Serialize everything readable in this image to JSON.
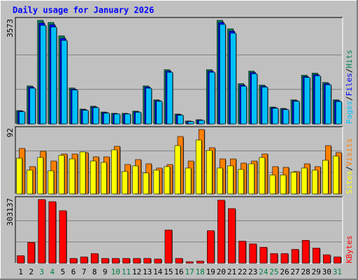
{
  "chart_data": [
    {
      "type": "bar",
      "title": "Daily usage for January 2026",
      "legend_separator": "/",
      "ylim": [
        0,
        3573
      ],
      "series": [
        {
          "name": "Hits",
          "color": "#00805c",
          "values": [
            460,
            1310,
            3573,
            3500,
            3040,
            1240,
            510,
            610,
            410,
            365,
            365,
            440,
            1310,
            830,
            1870,
            340,
            100,
            145,
            1870,
            3573,
            3280,
            1390,
            1820,
            1340,
            580,
            535,
            830,
            1680,
            1750,
            1430,
            830
          ]
        },
        {
          "name": "Files",
          "color": "#0000ff",
          "values": [
            440,
            1270,
            3480,
            3420,
            2950,
            1200,
            490,
            580,
            390,
            350,
            350,
            420,
            1270,
            800,
            1820,
            320,
            90,
            130,
            1820,
            3500,
            3200,
            1340,
            1770,
            1300,
            560,
            510,
            800,
            1630,
            1700,
            1390,
            800
          ]
        },
        {
          "name": "Pages",
          "color": "#00c0ff",
          "values": [
            420,
            1230,
            3400,
            3340,
            2880,
            1170,
            470,
            560,
            370,
            340,
            340,
            400,
            1230,
            780,
            1780,
            300,
            80,
            120,
            1780,
            3430,
            3130,
            1300,
            1730,
            1270,
            540,
            490,
            780,
            1600,
            1660,
            1350,
            770
          ]
        }
      ]
    },
    {
      "type": "bar",
      "ylim": [
        0,
        92
      ],
      "series": [
        {
          "name": "Visits",
          "color": "#ff8000",
          "values": [
            65,
            39,
            61,
            47,
            57,
            57,
            59,
            53,
            53,
            68,
            42,
            49,
            43,
            37,
            42,
            82,
            47,
            92,
            66,
            50,
            50,
            44,
            47,
            57,
            39,
            38,
            32,
            43,
            39,
            69,
            59
          ]
        },
        {
          "name": "Sites",
          "color": "#ffff00",
          "values": [
            51,
            34,
            52,
            33,
            55,
            50,
            60,
            47,
            45,
            63,
            32,
            40,
            30,
            34,
            39,
            69,
            37,
            77,
            62,
            37,
            40,
            35,
            43,
            52,
            27,
            27,
            31,
            37,
            34,
            48,
            54
          ]
        }
      ]
    },
    {
      "type": "bar",
      "ylim": [
        0,
        303137
      ],
      "categories": [
        "1",
        "2",
        "3",
        "4",
        "5",
        "6",
        "7",
        "8",
        "9",
        "10",
        "11",
        "12",
        "13",
        "14",
        "15",
        "16",
        "17",
        "18",
        "19",
        "20",
        "21",
        "22",
        "23",
        "24",
        "25",
        "26",
        "27",
        "28",
        "29",
        "30",
        "31"
      ],
      "category_colors": [
        "#000000",
        "#000000",
        "#008040",
        "#008040",
        "#000000",
        "#000000",
        "#000000",
        "#000000",
        "#000000",
        "#008040",
        "#008040",
        "#000000",
        "#000000",
        "#000000",
        "#000000",
        "#000000",
        "#008040",
        "#008040",
        "#000000",
        "#000000",
        "#000000",
        "#000000",
        "#000000",
        "#008040",
        "#008040",
        "#000000",
        "#000000",
        "#000000",
        "#000000",
        "#000000",
        "#008040"
      ],
      "series": [
        {
          "name": "KBytes",
          "color": "#ff0000",
          "values": [
            36000,
            99000,
            303137,
            293000,
            250000,
            23000,
            30000,
            46000,
            23000,
            23000,
            23000,
            23000,
            23000,
            20000,
            158000,
            23000,
            7000,
            10000,
            155000,
            300000,
            260000,
            105000,
            92000,
            76000,
            46000,
            46000,
            66000,
            109000,
            72000,
            40000,
            30000
          ]
        }
      ]
    }
  ]
}
